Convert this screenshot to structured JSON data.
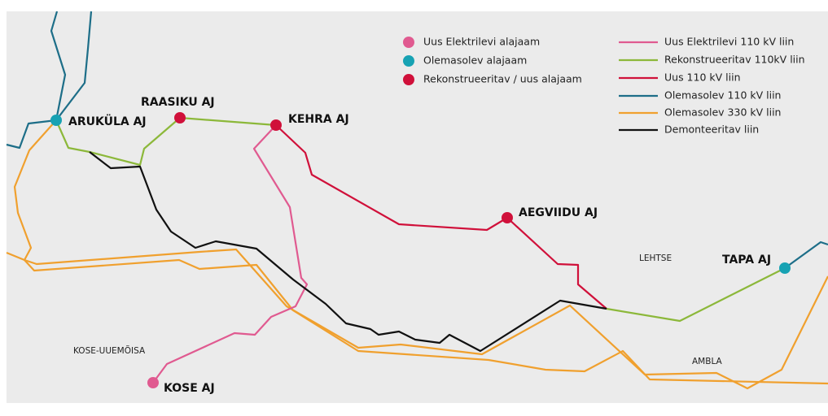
{
  "legend": {
    "stations": [
      "Uus Elektrilevi alajaam",
      "Olemasolev alajaam",
      "Rekonstrueeritav / uus alajaam"
    ],
    "lines": [
      "Uus Elektrilevi 110 kV liin",
      "Rekonstrueeritav 110kV liin",
      "Uus 110 kV liin",
      "Olemasolev 110 kV liin",
      "Olemasolev 330 kV liin",
      "Demonteeritav liin"
    ]
  },
  "stations": [
    {
      "label": "ARUKÜLA AJ"
    },
    {
      "label": "RAASIKU AJ"
    },
    {
      "label": "KEHRA AJ"
    },
    {
      "label": "AEGVIIDU AJ"
    },
    {
      "label": "TAPA AJ"
    },
    {
      "label": "KOSE AJ"
    }
  ],
  "places": [
    "LEHTSE",
    "KOSE-UUEMÕISA",
    "AMBLA"
  ]
}
